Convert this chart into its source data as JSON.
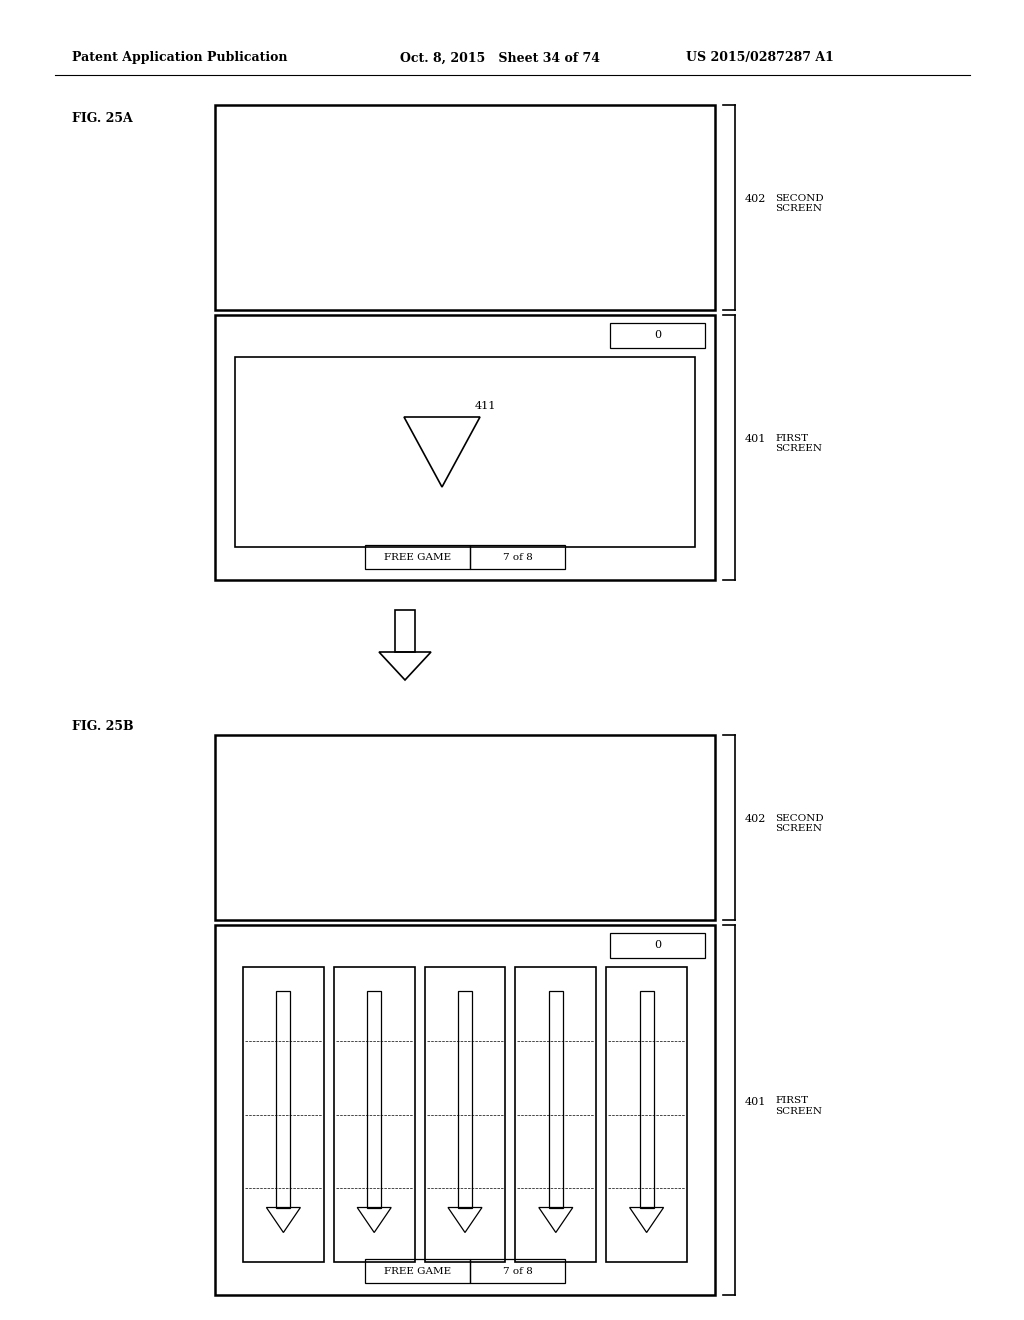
{
  "bg_color": "#ffffff",
  "header_left": "Patent Application Publication",
  "header_mid": "Oct. 8, 2015   Sheet 34 of 74",
  "header_right": "US 2015/0287287 A1",
  "fig_a_label": "FIG. 25A",
  "fig_b_label": "FIG. 25B",
  "label_402": "402",
  "label_401": "401",
  "text_second_screen": "SECOND\nSCREEN",
  "text_first_screen": "FIRST\nSCREEN",
  "label_411": "411",
  "label_0": "0",
  "text_free_game": "FREE GAME",
  "text_7of8": "7 of 8",
  "num_cols_b": 5
}
